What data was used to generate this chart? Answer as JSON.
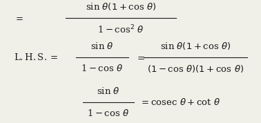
{
  "background_color": "#f0efe8",
  "text_color": "#1a1a1a",
  "figsize": [
    3.78,
    1.78
  ],
  "dpi": 100
}
